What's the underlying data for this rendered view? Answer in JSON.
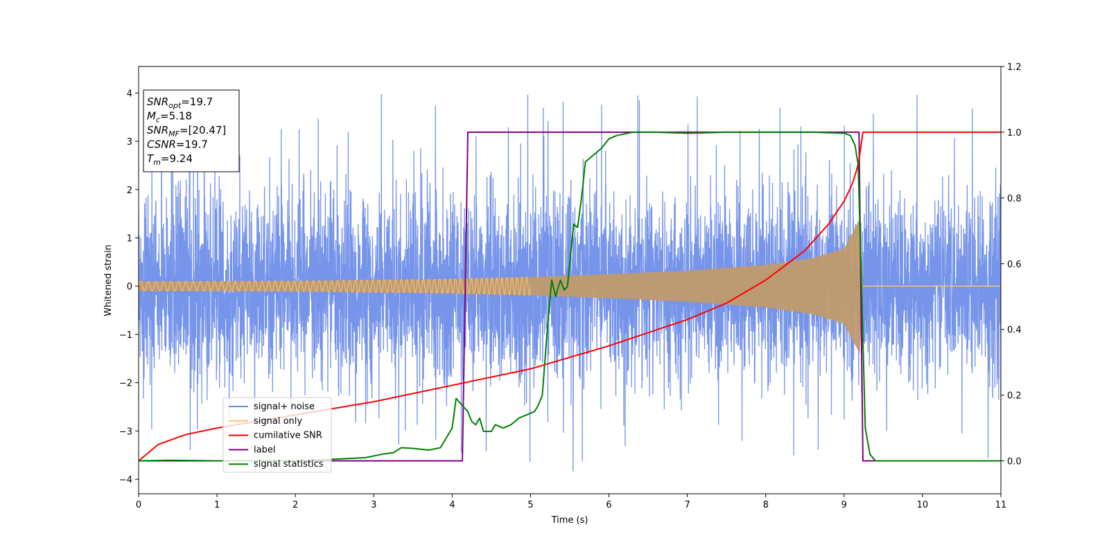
{
  "chart_data": {
    "type": "line",
    "xlabel": "Time (s)",
    "ylabel": "Whitened strain",
    "xlim": [
      0,
      11
    ],
    "ylim_left": [
      -4.3,
      4.55
    ],
    "ylim_right": [
      -0.1,
      1.2
    ],
    "x_ticks": [
      "0",
      "1",
      "2",
      "3",
      "4",
      "5",
      "6",
      "7",
      "8",
      "9",
      "10",
      "11"
    ],
    "y_ticks_left": [
      "4",
      "3",
      "2",
      "1",
      "0",
      "−1",
      "−2",
      "−3",
      "−4"
    ],
    "y_ticks_right": [
      "1.2",
      "1.0",
      "0.8",
      "0.6",
      "0.4",
      "0.2",
      "0.0"
    ],
    "legend_placement": "lower-left",
    "info_box": [
      {
        "base": "SNR",
        "sub": "opt",
        "value": "=19.7"
      },
      {
        "base": "M",
        "sub": "c",
        "value": "=5.18"
      },
      {
        "base": "SNR",
        "sub": "MF",
        "value": "=[20.47]"
      },
      {
        "base": "CSNR",
        "sub": "",
        "value": "=19.7"
      },
      {
        "base": "T",
        "sub": "m",
        "value": "=9.24"
      }
    ],
    "series": [
      {
        "name": "signal+ noise",
        "color": "#6f8ee8",
        "axis": "left",
        "description_values": {
          "std": 1.0,
          "max_spike": 4.2,
          "min_spike": -3.9
        }
      },
      {
        "name": "signal only",
        "color": "#f5c27a",
        "axis": "left",
        "envelope_points": [
          [
            0,
            0.1
          ],
          [
            2,
            0.11
          ],
          [
            4,
            0.15
          ],
          [
            5,
            0.19
          ],
          [
            6,
            0.25
          ],
          [
            7,
            0.32
          ],
          [
            8,
            0.44
          ],
          [
            8.6,
            0.58
          ],
          [
            9,
            0.78
          ],
          [
            9.2,
            1.4
          ],
          [
            9.24,
            0.0
          ],
          [
            11,
            0.0
          ]
        ]
      },
      {
        "name": "cumilative SNR",
        "color": "#ff0000",
        "axis": "right",
        "points": [
          [
            0,
            0.0
          ],
          [
            0.25,
            0.05
          ],
          [
            0.6,
            0.08
          ],
          [
            1,
            0.1
          ],
          [
            2,
            0.14
          ],
          [
            3,
            0.18
          ],
          [
            4,
            0.23
          ],
          [
            5,
            0.28
          ],
          [
            6,
            0.35
          ],
          [
            7,
            0.43
          ],
          [
            7.5,
            0.48
          ],
          [
            8,
            0.55
          ],
          [
            8.5,
            0.64
          ],
          [
            8.8,
            0.72
          ],
          [
            9.0,
            0.79
          ],
          [
            9.1,
            0.84
          ],
          [
            9.18,
            0.9
          ],
          [
            9.24,
            1.0
          ],
          [
            11,
            1.0
          ]
        ]
      },
      {
        "name": "label",
        "color": "#800080",
        "axis": "right",
        "points": [
          [
            0,
            0.0
          ],
          [
            4.13,
            0.0
          ],
          [
            4.2,
            1.0
          ],
          [
            9.19,
            1.0
          ],
          [
            9.24,
            0.0
          ],
          [
            11,
            0.0
          ]
        ]
      },
      {
        "name": "signal statistics",
        "color": "#008000",
        "axis": "right",
        "points": [
          [
            0,
            0.0
          ],
          [
            0.4,
            0.002
          ],
          [
            1,
            0.0
          ],
          [
            2,
            0.0
          ],
          [
            2.5,
            0.005
          ],
          [
            2.9,
            0.01
          ],
          [
            3.1,
            0.02
          ],
          [
            3.25,
            0.025
          ],
          [
            3.35,
            0.04
          ],
          [
            3.5,
            0.038
          ],
          [
            3.7,
            0.033
          ],
          [
            3.85,
            0.04
          ],
          [
            4.0,
            0.1
          ],
          [
            4.05,
            0.19
          ],
          [
            4.2,
            0.15
          ],
          [
            4.25,
            0.12
          ],
          [
            4.3,
            0.11
          ],
          [
            4.35,
            0.13
          ],
          [
            4.4,
            0.09
          ],
          [
            4.5,
            0.09
          ],
          [
            4.55,
            0.11
          ],
          [
            4.65,
            0.1
          ],
          [
            4.75,
            0.11
          ],
          [
            4.85,
            0.13
          ],
          [
            4.95,
            0.14
          ],
          [
            5.05,
            0.15
          ],
          [
            5.1,
            0.17
          ],
          [
            5.15,
            0.2
          ],
          [
            5.22,
            0.42
          ],
          [
            5.27,
            0.55
          ],
          [
            5.32,
            0.5
          ],
          [
            5.38,
            0.55
          ],
          [
            5.43,
            0.52
          ],
          [
            5.47,
            0.53
          ],
          [
            5.55,
            0.72
          ],
          [
            5.6,
            0.71
          ],
          [
            5.65,
            0.8
          ],
          [
            5.7,
            0.91
          ],
          [
            5.8,
            0.93
          ],
          [
            5.9,
            0.95
          ],
          [
            6.0,
            0.98
          ],
          [
            6.1,
            0.99
          ],
          [
            6.3,
            1.0
          ],
          [
            6.6,
            1.0
          ],
          [
            7.0,
            0.997
          ],
          [
            7.5,
            1.0
          ],
          [
            8.0,
            1.0
          ],
          [
            8.6,
            1.0
          ],
          [
            9.0,
            0.997
          ],
          [
            9.08,
            0.99
          ],
          [
            9.14,
            0.96
          ],
          [
            9.18,
            0.9
          ],
          [
            9.22,
            0.55
          ],
          [
            9.27,
            0.1
          ],
          [
            9.33,
            0.02
          ],
          [
            9.4,
            0.0
          ],
          [
            11,
            0.0
          ]
        ]
      }
    ]
  }
}
